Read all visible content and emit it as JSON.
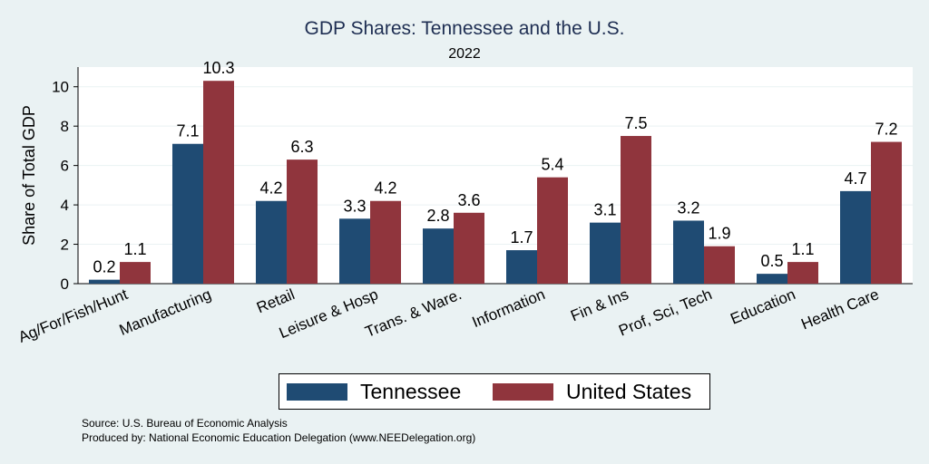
{
  "chart_data": {
    "type": "bar",
    "title": "GDP Shares: Tennessee and the U.S.",
    "subtitle": "2022",
    "xlabel": "",
    "ylabel": "Share of Total GDP",
    "ylim": [
      0,
      11
    ],
    "yticks": [
      0,
      2,
      4,
      6,
      8,
      10
    ],
    "grid": true,
    "legend_position": "bottom-center",
    "categories": [
      "Ag/For/Fish/Hunt",
      "Manufacturing",
      "Retail",
      "Leisure & Hosp",
      "Trans. & Ware.",
      "Information",
      "Fin & Ins",
      "Prof, Sci, Tech",
      "Education",
      "Health Care"
    ],
    "series": [
      {
        "name": "Tennessee",
        "color": "#1f4b73",
        "values": [
          0.2,
          7.1,
          4.2,
          3.3,
          2.8,
          1.7,
          3.1,
          3.2,
          0.5,
          4.7
        ]
      },
      {
        "name": "United States",
        "color": "#90353d",
        "values": [
          1.1,
          10.3,
          6.3,
          4.2,
          3.6,
          5.4,
          7.5,
          1.9,
          1.1,
          7.2
        ]
      }
    ]
  },
  "footer": {
    "source": "Source: U.S. Bureau of Economic Analysis",
    "produced_by": "Produced by: National Economic Education Delegation (www.NEEDelegation.org)"
  }
}
